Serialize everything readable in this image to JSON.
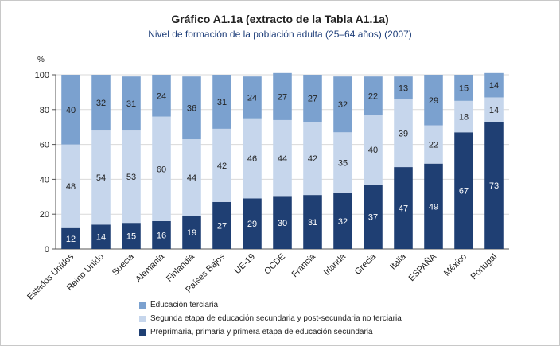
{
  "title": "Gráfico A1.1a (extracto de la Tabla A1.1a)",
  "subtitle": "Nivel de formación de la población adulta (25–64 años) (2007)",
  "chart_data": {
    "type": "bar",
    "stacked": true,
    "ylabel": "%",
    "ylim": [
      0,
      100
    ],
    "yticks": [
      0,
      20,
      40,
      60,
      80,
      100
    ],
    "categories": [
      "Estados Unidos",
      "Reino Unido",
      "Suecia",
      "Alemania",
      "Finlandia",
      "Países Bajos",
      "UE-19",
      "OCDE",
      "Francia",
      "Irlanda",
      "Grecia",
      "Italia",
      "ESPAÑA",
      "México",
      "Portugal"
    ],
    "series": [
      {
        "name": "Preprimaria, primaria y primera etapa de educación secundaria",
        "color": "#1f3f73",
        "values": [
          12,
          14,
          15,
          16,
          19,
          27,
          29,
          30,
          31,
          32,
          37,
          47,
          49,
          67,
          73
        ]
      },
      {
        "name": "Segunda etapa de educación secundaria y post-secundaria no terciaria",
        "color": "#c6d6ec",
        "values": [
          48,
          54,
          53,
          60,
          44,
          42,
          46,
          44,
          42,
          35,
          40,
          39,
          22,
          18,
          14
        ]
      },
      {
        "name": "Educación terciaria",
        "color": "#7ba1cf",
        "values": [
          40,
          32,
          31,
          24,
          36,
          31,
          24,
          27,
          27,
          32,
          22,
          13,
          29,
          15,
          14
        ]
      }
    ]
  },
  "legend": [
    {
      "label": "Educación terciaria",
      "color": "#7ba1cf"
    },
    {
      "label": "Segunda etapa de educación secundaria y post-secundaria no terciaria",
      "color": "#c6d6ec"
    },
    {
      "label": "Preprimaria, primaria y primera etapa de educación secundaria",
      "color": "#1f3f73"
    }
  ]
}
